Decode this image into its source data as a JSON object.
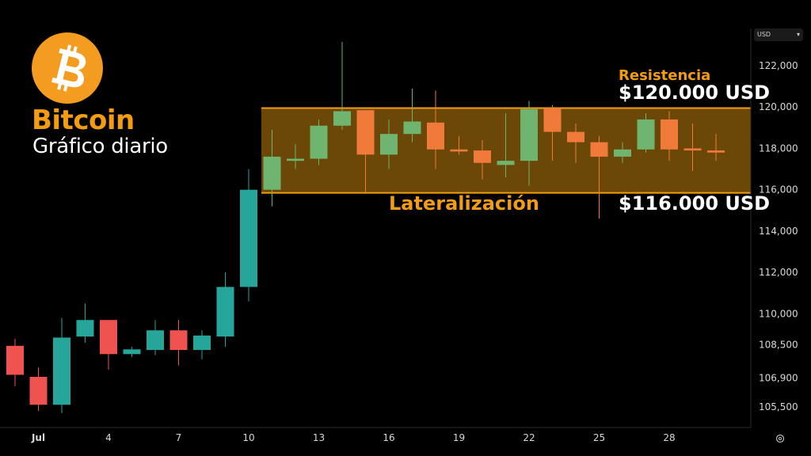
{
  "header": {
    "title": "Bitcoin",
    "subtitle": "Gráfico diario",
    "logo_icon": "bitcoin-logo-icon"
  },
  "annotations": {
    "resistance_label": "Resistencia",
    "resistance_value": "$120.000 USD",
    "lateral_label": "Lateralización",
    "support_value": "$116.000 USD"
  },
  "toolbar": {
    "currency": "USD",
    "settings_icon": "gear-icon"
  },
  "colors": {
    "background": "#000000",
    "up": "#26a69a",
    "down": "#ef5350",
    "up_in_range": "#6fb56f",
    "down_in_range": "#f07a3a",
    "zone_fill": "#6b4708",
    "zone_border": "#f39c12",
    "accent_orange": "#f39c12",
    "axis_text": "#d9d9d9"
  },
  "chart_data": {
    "type": "candlestick",
    "title": "",
    "x_tick_labels": [
      "Jul",
      "4",
      "7",
      "10",
      "13",
      "16",
      "19",
      "22",
      "25",
      "28"
    ],
    "y_tick_labels": [
      "105,500",
      "106,900",
      "108,500",
      "110,000",
      "112,000",
      "114,000",
      "116,000",
      "118,000",
      "120,000",
      "122,000"
    ],
    "y_tick_values": [
      105500,
      106900,
      108500,
      110000,
      112000,
      114000,
      116000,
      118000,
      120000,
      122000
    ],
    "ylim": [
      104500,
      123800
    ],
    "grid": false,
    "range_zone": {
      "low": 115850,
      "high": 119950
    },
    "candles": [
      {
        "day": "Jun 30",
        "open": 108450,
        "high": 108800,
        "low": 106500,
        "close": 107050
      },
      {
        "day": "Jul 1",
        "open": 106950,
        "high": 107400,
        "low": 105300,
        "close": 105600
      },
      {
        "day": "Jul 2",
        "open": 105600,
        "high": 109800,
        "low": 105200,
        "close": 108850
      },
      {
        "day": "Jul 3",
        "open": 108900,
        "high": 110500,
        "low": 108600,
        "close": 109700
      },
      {
        "day": "Jul 4",
        "open": 109700,
        "high": 109700,
        "low": 107300,
        "close": 108050
      },
      {
        "day": "Jul 5",
        "open": 108050,
        "high": 108400,
        "low": 107900,
        "close": 108280
      },
      {
        "day": "Jul 6",
        "open": 108250,
        "high": 109700,
        "low": 108000,
        "close": 109200
      },
      {
        "day": "Jul 7",
        "open": 109200,
        "high": 109700,
        "low": 107500,
        "close": 108250
      },
      {
        "day": "Jul 8",
        "open": 108250,
        "high": 109200,
        "low": 107800,
        "close": 108950
      },
      {
        "day": "Jul 9",
        "open": 108900,
        "high": 112000,
        "low": 108400,
        "close": 111300
      },
      {
        "day": "Jul 10",
        "open": 111300,
        "high": 117000,
        "low": 110600,
        "close": 116000
      },
      {
        "day": "Jul 11",
        "open": 116000,
        "high": 118900,
        "low": 115200,
        "close": 117600
      },
      {
        "day": "Jul 12",
        "open": 117400,
        "high": 118200,
        "low": 117000,
        "close": 117500
      },
      {
        "day": "Jul 13",
        "open": 117500,
        "high": 119400,
        "low": 117200,
        "close": 119100
      },
      {
        "day": "Jul 14",
        "open": 119100,
        "high": 123150,
        "low": 118900,
        "close": 119800
      },
      {
        "day": "Jul 15",
        "open": 119850,
        "high": 119850,
        "low": 115800,
        "close": 117700
      },
      {
        "day": "Jul 16",
        "open": 117700,
        "high": 119400,
        "low": 117000,
        "close": 118700
      },
      {
        "day": "Jul 17",
        "open": 118700,
        "high": 120900,
        "low": 118300,
        "close": 119300
      },
      {
        "day": "Jul 18",
        "open": 119250,
        "high": 120800,
        "low": 117000,
        "close": 117950
      },
      {
        "day": "Jul 19",
        "open": 117950,
        "high": 118600,
        "low": 117700,
        "close": 117850
      },
      {
        "day": "Jul 20",
        "open": 117900,
        "high": 118400,
        "low": 116500,
        "close": 117300
      },
      {
        "day": "Jul 21",
        "open": 117200,
        "high": 119700,
        "low": 116600,
        "close": 117400
      },
      {
        "day": "Jul 22",
        "open": 117400,
        "high": 120300,
        "low": 116200,
        "close": 119900
      },
      {
        "day": "Jul 23",
        "open": 119950,
        "high": 120100,
        "low": 117400,
        "close": 118800
      },
      {
        "day": "Jul 24",
        "open": 118800,
        "high": 119200,
        "low": 117300,
        "close": 118300
      },
      {
        "day": "Jul 25",
        "open": 118300,
        "high": 118600,
        "low": 114600,
        "close": 117600
      },
      {
        "day": "Jul 26",
        "open": 117600,
        "high": 118300,
        "low": 117300,
        "close": 117950
      },
      {
        "day": "Jul 27",
        "open": 117950,
        "high": 119700,
        "low": 117800,
        "close": 119400
      },
      {
        "day": "Jul 28",
        "open": 119400,
        "high": 119800,
        "low": 117400,
        "close": 117950
      },
      {
        "day": "Jul 29",
        "open": 118000,
        "high": 119200,
        "low": 116900,
        "close": 117900
      },
      {
        "day": "Jul 30",
        "open": 117900,
        "high": 118700,
        "low": 117400,
        "close": 117800
      }
    ]
  }
}
